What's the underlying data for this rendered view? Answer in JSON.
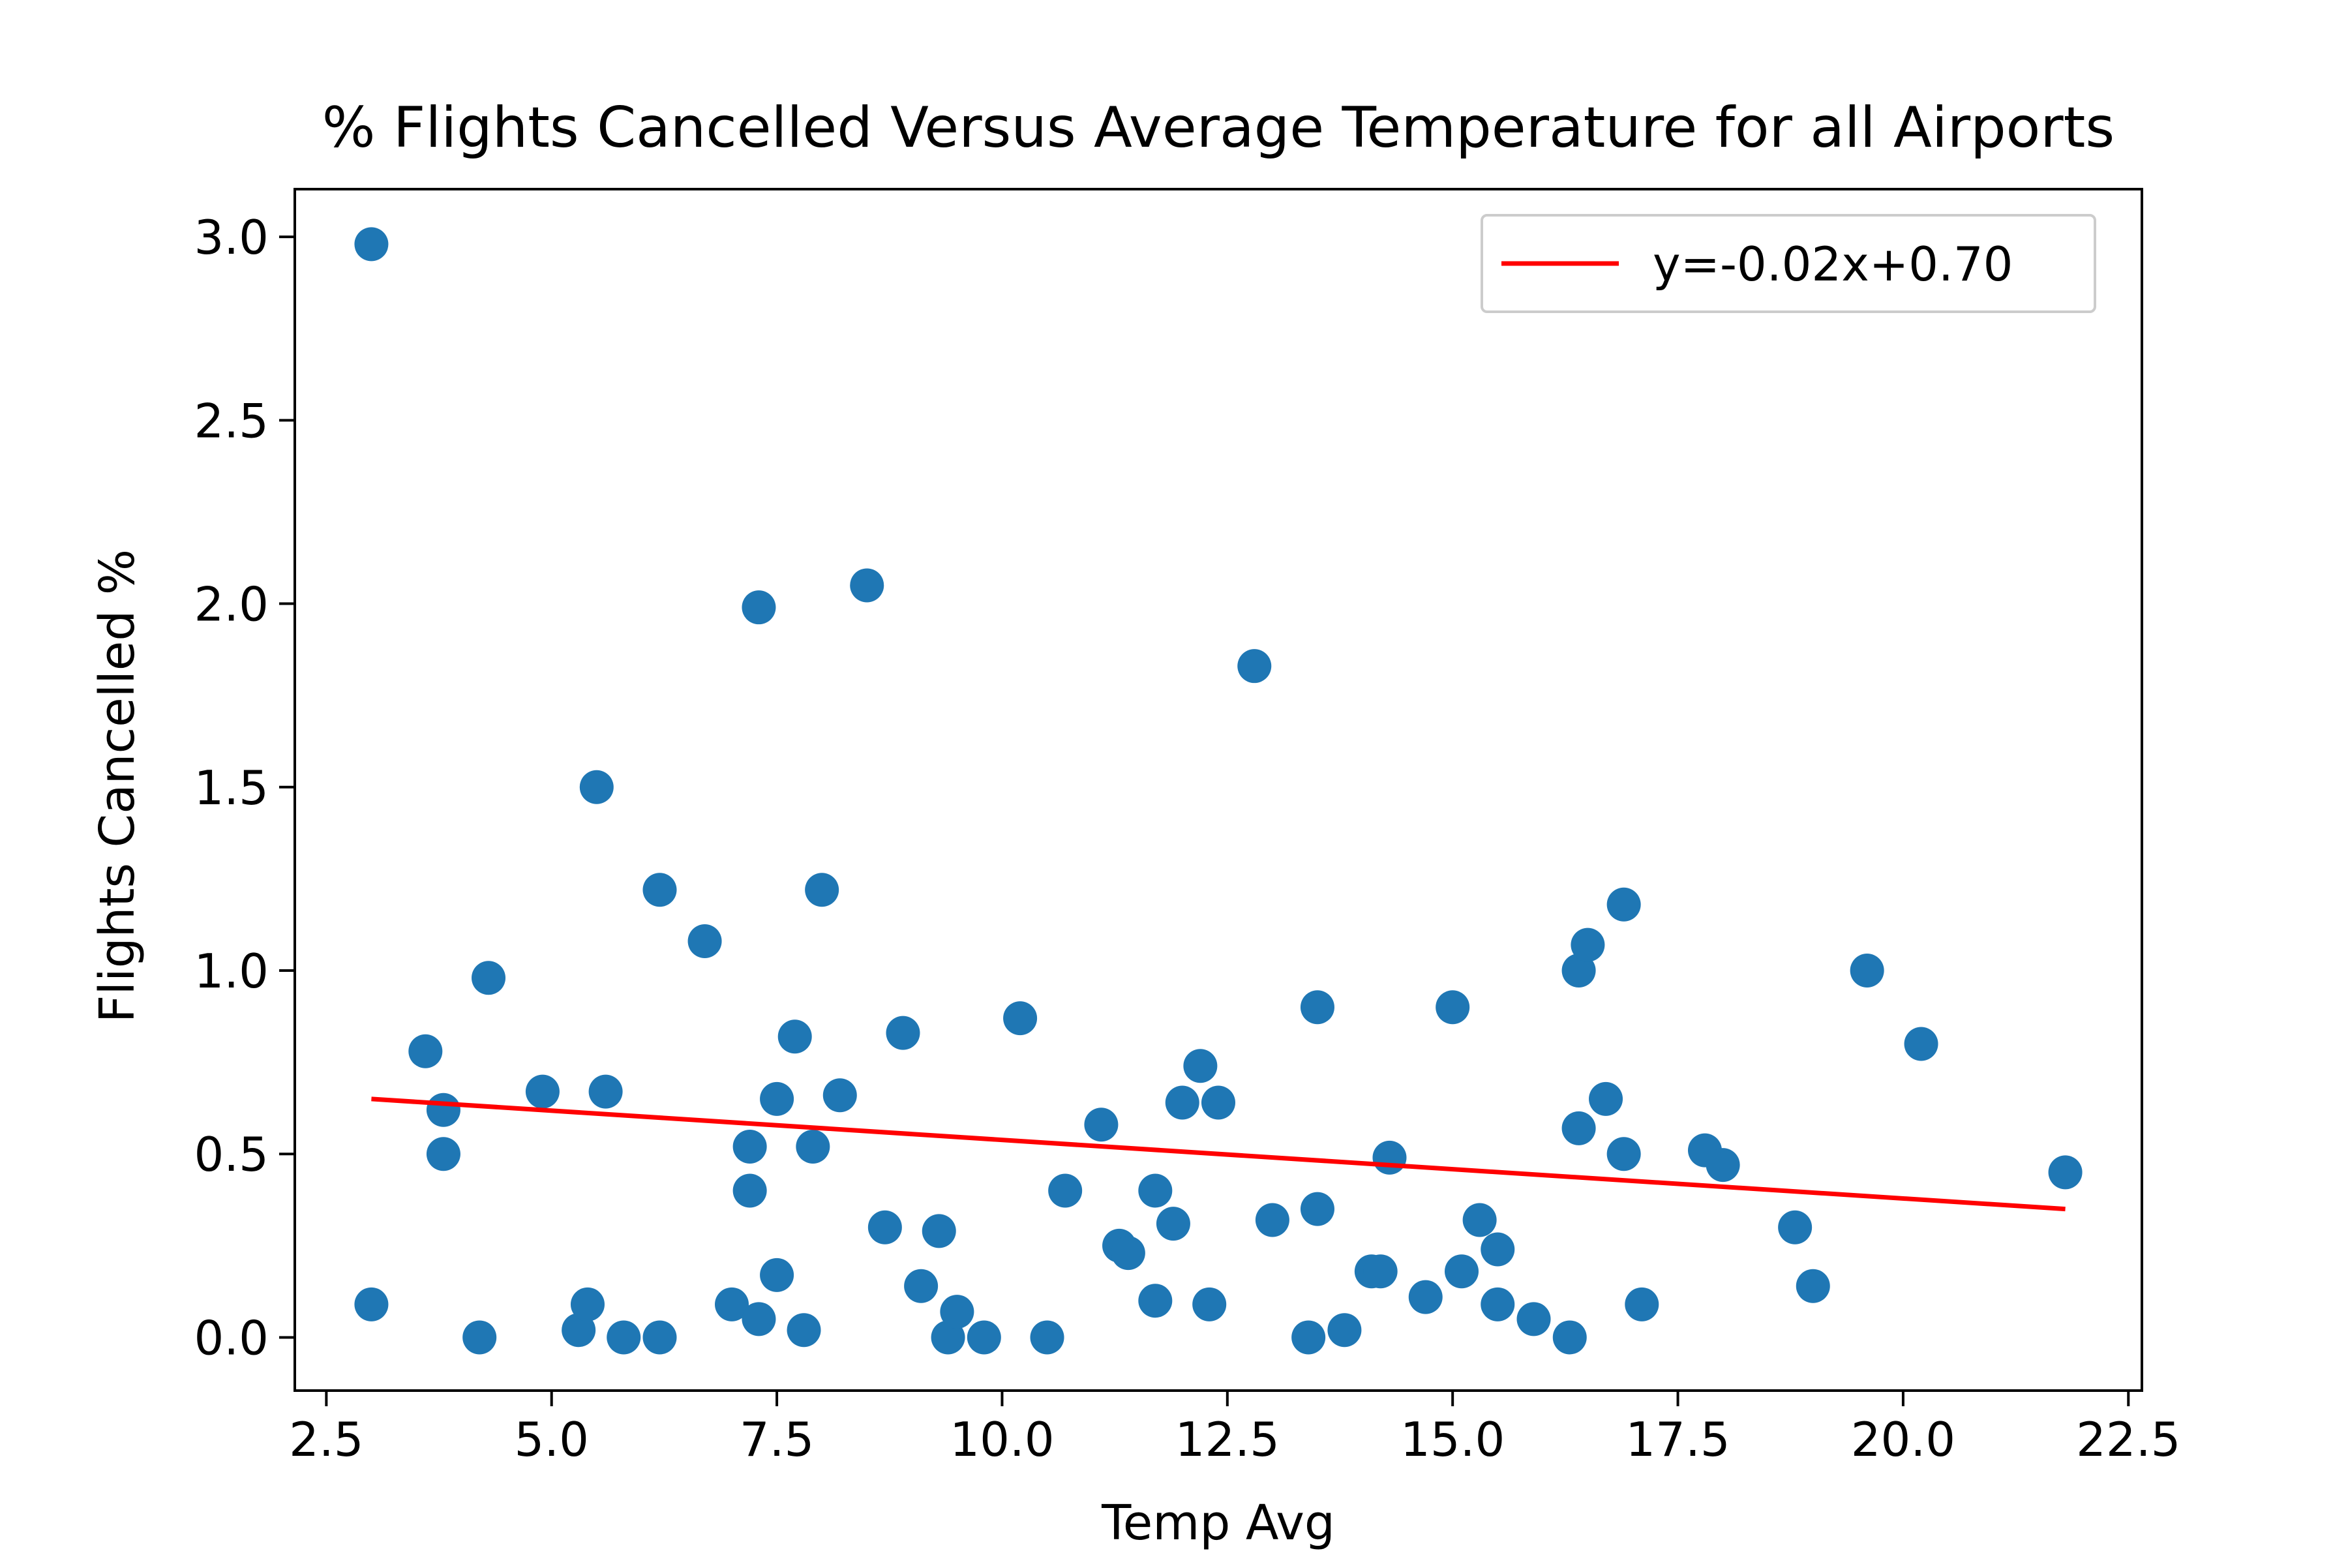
{
  "chart_data": {
    "type": "scatter",
    "title": "% Flights Cancelled Versus Average Temperature for all Airports",
    "xlabel": "Temp Avg",
    "ylabel": "Flights Cancelled %",
    "xlim": [
      2.15,
      22.65
    ],
    "ylim": [
      -0.145,
      3.13
    ],
    "xticks": [
      2.5,
      5.0,
      7.5,
      10.0,
      12.5,
      15.0,
      17.5,
      20.0,
      22.5
    ],
    "xtick_labels": [
      "2.5",
      "5.0",
      "7.5",
      "10.0",
      "12.5",
      "15.0",
      "17.5",
      "20.0",
      "22.5"
    ],
    "yticks": [
      0.0,
      0.5,
      1.0,
      1.5,
      2.0,
      2.5,
      3.0
    ],
    "ytick_labels": [
      "0.0",
      "0.5",
      "1.0",
      "1.5",
      "2.0",
      "2.5",
      "3.0"
    ],
    "grid": false,
    "legend": {
      "placement": "top-right",
      "entries": [
        "y=-0.02x+0.70"
      ]
    },
    "colors": {
      "points": "#1f77b4",
      "regression": "#ff0000"
    },
    "series": [
      {
        "kind": "scatter",
        "points": [
          [
            3.0,
            2.98
          ],
          [
            3.0,
            0.09
          ],
          [
            3.6,
            0.78
          ],
          [
            3.8,
            0.62
          ],
          [
            3.8,
            0.5
          ],
          [
            4.2,
            0.0
          ],
          [
            4.3,
            0.98
          ],
          [
            4.9,
            0.67
          ],
          [
            5.3,
            0.02
          ],
          [
            5.4,
            0.09
          ],
          [
            5.5,
            1.5
          ],
          [
            5.6,
            0.67
          ],
          [
            5.8,
            0.0
          ],
          [
            6.2,
            0.0
          ],
          [
            6.2,
            1.22
          ],
          [
            6.7,
            1.08
          ],
          [
            7.0,
            0.09
          ],
          [
            7.2,
            0.52
          ],
          [
            7.2,
            0.4
          ],
          [
            7.3,
            1.99
          ],
          [
            7.3,
            0.05
          ],
          [
            7.5,
            0.65
          ],
          [
            7.5,
            0.17
          ],
          [
            7.7,
            0.82
          ],
          [
            7.8,
            0.02
          ],
          [
            7.9,
            0.52
          ],
          [
            8.0,
            1.22
          ],
          [
            8.2,
            0.66
          ],
          [
            8.5,
            2.05
          ],
          [
            8.7,
            0.3
          ],
          [
            8.9,
            0.83
          ],
          [
            9.1,
            0.14
          ],
          [
            9.3,
            0.29
          ],
          [
            9.4,
            0.0
          ],
          [
            9.5,
            0.07
          ],
          [
            9.8,
            0.0
          ],
          [
            10.2,
            0.87
          ],
          [
            10.5,
            0.0
          ],
          [
            10.7,
            0.4
          ],
          [
            11.1,
            0.58
          ],
          [
            11.3,
            0.25
          ],
          [
            11.4,
            0.23
          ],
          [
            11.7,
            0.4
          ],
          [
            11.7,
            0.1
          ],
          [
            11.9,
            0.31
          ],
          [
            12.0,
            0.64
          ],
          [
            12.2,
            0.74
          ],
          [
            12.3,
            0.09
          ],
          [
            12.4,
            0.64
          ],
          [
            12.8,
            1.83
          ],
          [
            13.0,
            0.32
          ],
          [
            13.4,
            0.0
          ],
          [
            13.5,
            0.9
          ],
          [
            13.5,
            0.35
          ],
          [
            13.8,
            0.02
          ],
          [
            14.1,
            0.18
          ],
          [
            14.2,
            0.18
          ],
          [
            14.3,
            0.49
          ],
          [
            14.7,
            0.11
          ],
          [
            15.0,
            0.9
          ],
          [
            15.1,
            0.18
          ],
          [
            15.3,
            0.32
          ],
          [
            15.5,
            0.24
          ],
          [
            15.5,
            0.09
          ],
          [
            15.9,
            0.05
          ],
          [
            16.3,
            0.0
          ],
          [
            16.4,
            1.0
          ],
          [
            16.4,
            0.57
          ],
          [
            16.5,
            1.07
          ],
          [
            16.7,
            0.65
          ],
          [
            16.9,
            1.18
          ],
          [
            16.9,
            0.5
          ],
          [
            17.1,
            0.09
          ],
          [
            17.8,
            0.51
          ],
          [
            18.0,
            0.47
          ],
          [
            18.8,
            0.3
          ],
          [
            19.0,
            0.14
          ],
          [
            19.6,
            1.0
          ],
          [
            20.2,
            0.8
          ],
          [
            21.8,
            0.45
          ]
        ]
      },
      {
        "kind": "line",
        "name": "y=-0.02x+0.70",
        "x": [
          3.0,
          21.8
        ],
        "y": [
          0.65,
          0.35
        ]
      }
    ]
  }
}
